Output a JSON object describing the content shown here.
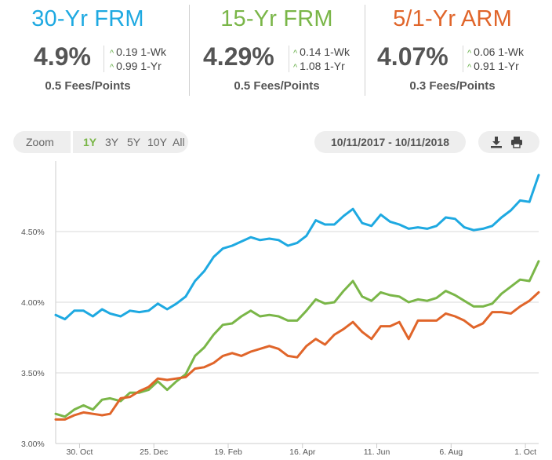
{
  "rates": [
    {
      "key": "30yr",
      "title": "30-Yr FRM",
      "rate": "4.9%",
      "wk_change": "0.19 1-Wk",
      "yr_change": "0.99 1-Yr",
      "fees": "0.5 Fees/Points",
      "color": "#1ea9e1"
    },
    {
      "key": "15yr",
      "title": "15-Yr FRM",
      "rate": "4.29%",
      "wk_change": "0.14 1-Wk",
      "yr_change": "1.08 1-Yr",
      "fees": "0.5 Fees/Points",
      "color": "#7ab648"
    },
    {
      "key": "arm",
      "title": "5/1-Yr ARM",
      "rate": "4.07%",
      "wk_change": "0.06 1-Wk",
      "yr_change": "0.91 1-Yr",
      "fees": "0.3 Fees/Points",
      "color": "#e0652a"
    }
  ],
  "zoom": {
    "label": "Zoom",
    "options": [
      {
        "label": "1Y",
        "active": true
      },
      {
        "label": "3Y",
        "active": false
      },
      {
        "label": "5Y",
        "active": false
      },
      {
        "label": "10Y",
        "active": false
      },
      {
        "label": "All",
        "active": false
      }
    ]
  },
  "date_range": "10/11/2017 - 10/11/2018",
  "tools": {
    "download_icon": "download-icon",
    "print_icon": "print-icon"
  },
  "chart_data": {
    "type": "line",
    "title": "",
    "xlabel": "",
    "ylabel": "",
    "ylim": [
      3.0,
      5.0
    ],
    "y_ticks": [
      3.0,
      3.5,
      4.0,
      4.5
    ],
    "y_tick_labels": [
      "3.00%",
      "3.50%",
      "4.00%",
      "4.50%"
    ],
    "x_range": [
      "2017-10-12",
      "2018-10-11"
    ],
    "x_ticks": [
      {
        "date": "2017-10-30",
        "label": "30. Oct"
      },
      {
        "date": "2017-12-25",
        "label": "25. Dec"
      },
      {
        "date": "2018-02-19",
        "label": "19. Feb"
      },
      {
        "date": "2018-04-16",
        "label": "16. Apr"
      },
      {
        "date": "2018-06-11",
        "label": "11. Jun"
      },
      {
        "date": "2018-08-06",
        "label": "6. Aug"
      },
      {
        "date": "2018-10-01",
        "label": "1. Oct"
      }
    ],
    "grid": true,
    "legend": "none",
    "x": [
      "2017-10-12",
      "2017-10-19",
      "2017-10-26",
      "2017-11-02",
      "2017-11-09",
      "2017-11-16",
      "2017-11-22",
      "2017-11-30",
      "2017-12-07",
      "2017-12-14",
      "2017-12-21",
      "2017-12-28",
      "2018-01-04",
      "2018-01-11",
      "2018-01-18",
      "2018-01-25",
      "2018-02-01",
      "2018-02-08",
      "2018-02-15",
      "2018-02-22",
      "2018-03-01",
      "2018-03-08",
      "2018-03-15",
      "2018-03-22",
      "2018-03-29",
      "2018-04-05",
      "2018-04-12",
      "2018-04-19",
      "2018-04-26",
      "2018-05-03",
      "2018-05-10",
      "2018-05-17",
      "2018-05-24",
      "2018-05-31",
      "2018-06-07",
      "2018-06-14",
      "2018-06-21",
      "2018-06-28",
      "2018-07-05",
      "2018-07-12",
      "2018-07-19",
      "2018-07-26",
      "2018-08-02",
      "2018-08-09",
      "2018-08-16",
      "2018-08-23",
      "2018-08-30",
      "2018-09-06",
      "2018-09-13",
      "2018-09-20",
      "2018-09-27",
      "2018-10-04",
      "2018-10-11"
    ],
    "series": [
      {
        "color": "#1ea9e1",
        "values": [
          3.91,
          3.88,
          3.94,
          3.94,
          3.9,
          3.95,
          3.92,
          3.9,
          3.94,
          3.93,
          3.94,
          3.99,
          3.95,
          3.99,
          4.04,
          4.15,
          4.22,
          4.32,
          4.38,
          4.4,
          4.43,
          4.46,
          4.44,
          4.45,
          4.44,
          4.4,
          4.42,
          4.47,
          4.58,
          4.55,
          4.55,
          4.61,
          4.66,
          4.56,
          4.54,
          4.62,
          4.57,
          4.55,
          4.52,
          4.53,
          4.52,
          4.54,
          4.6,
          4.59,
          4.53,
          4.51,
          4.52,
          4.54,
          4.6,
          4.65,
          4.72,
          4.71,
          4.9
        ]
      },
      {
        "color": "#7ab648",
        "values": [
          3.21,
          3.19,
          3.24,
          3.27,
          3.24,
          3.31,
          3.32,
          3.3,
          3.36,
          3.36,
          3.38,
          3.44,
          3.38,
          3.44,
          3.49,
          3.62,
          3.68,
          3.77,
          3.84,
          3.85,
          3.9,
          3.94,
          3.9,
          3.91,
          3.9,
          3.87,
          3.87,
          3.94,
          4.02,
          3.99,
          4.0,
          4.08,
          4.15,
          4.04,
          4.01,
          4.07,
          4.05,
          4.04,
          4.0,
          4.02,
          4.01,
          4.03,
          4.08,
          4.05,
          4.01,
          3.97,
          3.97,
          3.99,
          4.06,
          4.11,
          4.16,
          4.15,
          4.29
        ]
      },
      {
        "color": "#e0652a",
        "values": [
          3.17,
          3.17,
          3.2,
          3.22,
          3.21,
          3.2,
          3.21,
          3.32,
          3.33,
          3.37,
          3.4,
          3.46,
          3.45,
          3.46,
          3.47,
          3.53,
          3.54,
          3.57,
          3.62,
          3.64,
          3.62,
          3.65,
          3.67,
          3.69,
          3.67,
          3.62,
          3.61,
          3.69,
          3.74,
          3.7,
          3.77,
          3.81,
          3.86,
          3.79,
          3.74,
          3.83,
          3.83,
          3.86,
          3.74,
          3.87,
          3.87,
          3.87,
          3.92,
          3.9,
          3.87,
          3.82,
          3.85,
          3.93,
          3.93,
          3.92,
          3.97,
          4.01,
          4.07
        ]
      }
    ]
  }
}
